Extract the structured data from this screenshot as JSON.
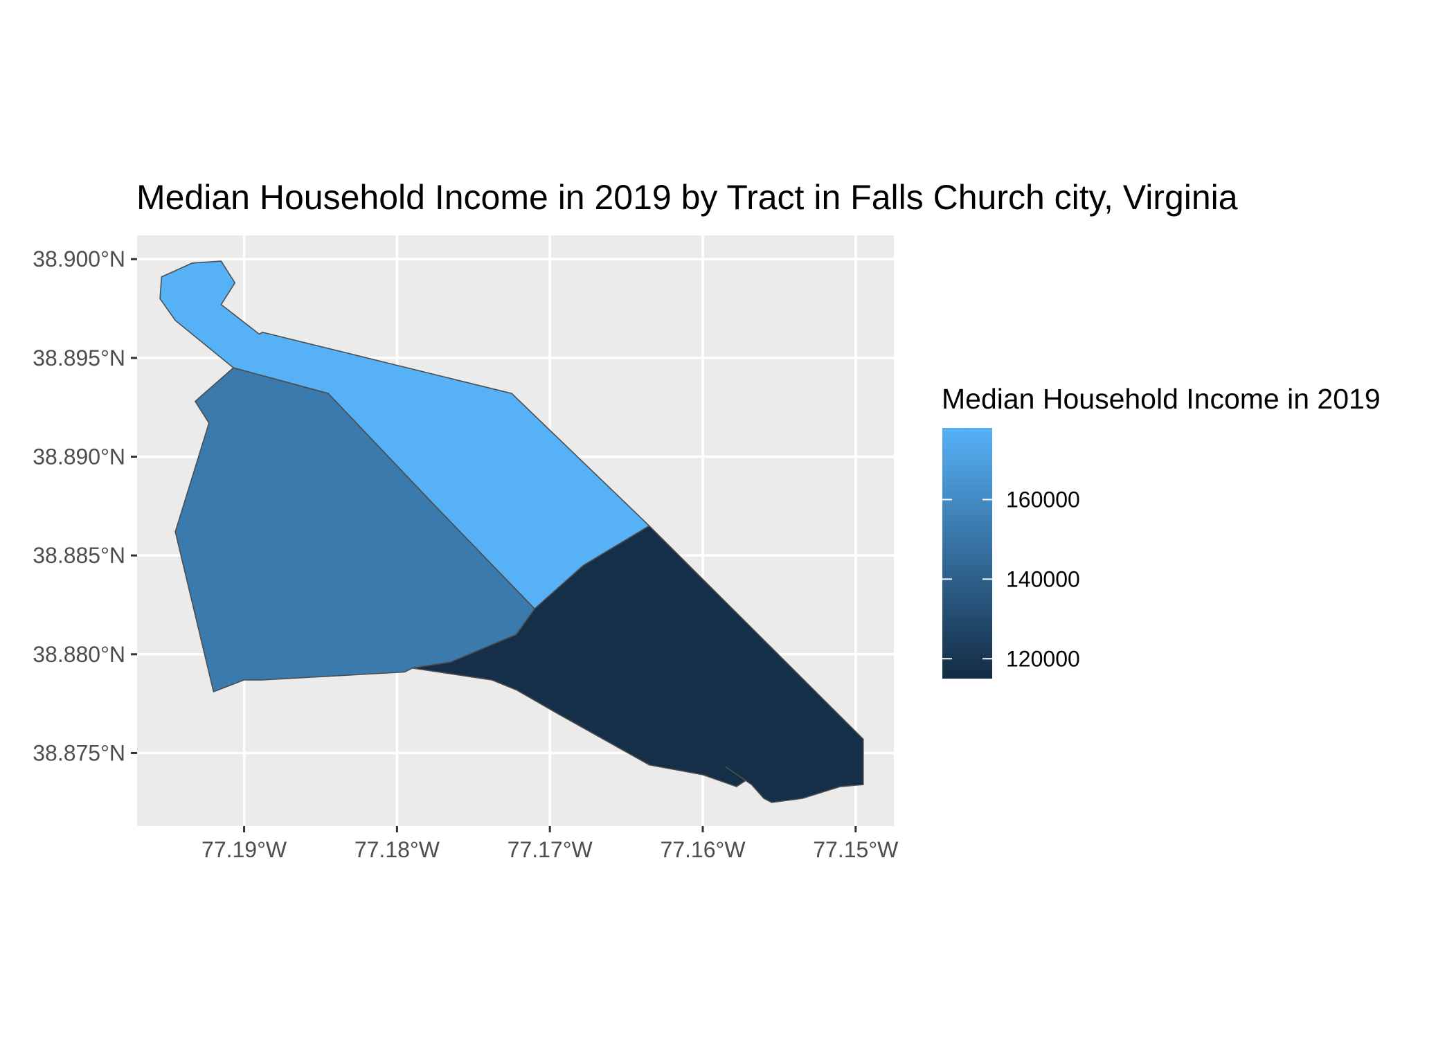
{
  "chart_data": {
    "type": "choropleth",
    "title": "Median Household Income in 2019 by Tract in Falls Church city, Virginia",
    "x_axis": {
      "ticks": [
        -77.19,
        -77.18,
        -77.17,
        -77.16,
        -77.15
      ],
      "tick_labels": [
        "77.19°W",
        "77.18°W",
        "77.17°W",
        "77.16°W",
        "77.15°W"
      ],
      "range": [
        -77.197,
        -77.1475
      ]
    },
    "y_axis": {
      "ticks": [
        38.9,
        38.895,
        38.89,
        38.885,
        38.88,
        38.875
      ],
      "tick_labels": [
        "38.900°N",
        "38.895°N",
        "38.890°N",
        "38.885°N",
        "38.880°N",
        "38.875°N"
      ],
      "range": [
        38.8713,
        38.9012
      ]
    },
    "grid": true,
    "legend": {
      "title": "Median Household Income in 2019",
      "position": "right",
      "range": [
        115000,
        178000
      ],
      "breaks": [
        160000,
        140000,
        120000
      ],
      "break_labels": [
        "160000",
        "140000",
        "120000"
      ],
      "color_low": "#132B43",
      "color_high": "#56B1F7"
    },
    "regions": [
      {
        "value": 178000,
        "coords": [
          [
            -77.1907,
            38.8945
          ],
          [
            -77.1945,
            38.8969
          ],
          [
            -77.1955,
            38.898
          ],
          [
            -77.1954,
            38.8991
          ],
          [
            -77.1934,
            38.8998
          ],
          [
            -77.1915,
            38.8999
          ],
          [
            -77.1906,
            38.8988
          ],
          [
            -77.1915,
            38.8977
          ],
          [
            -77.189,
            38.8962
          ],
          [
            -77.1888,
            38.8963
          ],
          [
            -77.1725,
            38.8932
          ],
          [
            -77.1635,
            38.8865
          ],
          [
            -77.1678,
            38.8845
          ],
          [
            -77.171,
            38.8823
          ],
          [
            -77.1775,
            38.8875
          ],
          [
            -77.1845,
            38.8932
          ]
        ]
      },
      {
        "value": 152000,
        "coords": [
          [
            -77.1907,
            38.8945
          ],
          [
            -77.1845,
            38.8932
          ],
          [
            -77.1775,
            38.8875
          ],
          [
            -77.171,
            38.8823
          ],
          [
            -77.1722,
            38.881
          ],
          [
            -77.1765,
            38.8796
          ],
          [
            -77.179,
            38.8793
          ],
          [
            -77.1795,
            38.8791
          ],
          [
            -77.1888,
            38.8787
          ],
          [
            -77.19,
            38.8787
          ],
          [
            -77.192,
            38.8781
          ],
          [
            -77.1945,
            38.8862
          ],
          [
            -77.1923,
            38.8917
          ],
          [
            -77.1932,
            38.8928
          ]
        ]
      },
      {
        "value": 117000,
        "coords": [
          [
            -77.1635,
            38.8865
          ],
          [
            -77.1678,
            38.8845
          ],
          [
            -77.171,
            38.8823
          ],
          [
            -77.1722,
            38.881
          ],
          [
            -77.1765,
            38.8796
          ],
          [
            -77.179,
            38.8793
          ],
          [
            -77.1738,
            38.8787
          ],
          [
            -77.1722,
            38.8782
          ],
          [
            -77.1695,
            38.877
          ],
          [
            -77.1665,
            38.8757
          ],
          [
            -77.1635,
            38.8744
          ],
          [
            -77.16,
            38.8739
          ],
          [
            -77.1578,
            38.8733
          ],
          [
            -77.1572,
            38.8736
          ],
          [
            -77.1585,
            38.8743
          ],
          [
            -77.1568,
            38.8734
          ],
          [
            -77.156,
            38.8727
          ],
          [
            -77.1555,
            38.8725
          ],
          [
            -77.1535,
            38.8727
          ],
          [
            -77.151,
            38.8733
          ],
          [
            -77.1495,
            38.8734
          ],
          [
            -77.1495,
            38.8757
          ]
        ]
      }
    ]
  }
}
